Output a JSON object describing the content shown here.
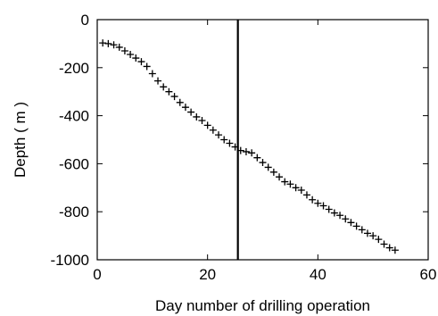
{
  "chart_data": {
    "type": "scatter",
    "title": "",
    "xlabel": "Day number of drilling operation",
    "ylabel": "Depth ( m )",
    "xlim": [
      0,
      60
    ],
    "ylim": [
      -1000,
      0
    ],
    "xticks": [
      0,
      20,
      40,
      60
    ],
    "yticks": [
      0,
      -200,
      -400,
      -600,
      -800,
      -1000
    ],
    "xtick_labels": [
      "0",
      "20",
      "40",
      "60"
    ],
    "ytick_labels": [
      "0",
      "-200",
      "-400",
      "-600",
      "-800",
      "-1000"
    ],
    "grid": false,
    "legend": "none",
    "marker": "+",
    "marker_color": "#000000",
    "vertical_line_x": 25.5,
    "series": [
      {
        "x": [
          1,
          2,
          3,
          4,
          5,
          6,
          7,
          8,
          9,
          10,
          11,
          12,
          13,
          14,
          15,
          16,
          17,
          18,
          19,
          20,
          21,
          22,
          23,
          24,
          25,
          26,
          27,
          28,
          29,
          30,
          31,
          32,
          33,
          34,
          35,
          36,
          37,
          38,
          39,
          40,
          41,
          42,
          43,
          44,
          45,
          46,
          47,
          48,
          49,
          50,
          51,
          52,
          53,
          54
        ],
        "y": [
          -97,
          -100,
          -105,
          -115,
          -130,
          -145,
          -160,
          -175,
          -195,
          -225,
          -255,
          -280,
          -300,
          -320,
          -345,
          -365,
          -385,
          -405,
          -420,
          -440,
          -460,
          -480,
          -500,
          -515,
          -530,
          -545,
          -550,
          -555,
          -575,
          -595,
          -615,
          -635,
          -655,
          -675,
          -685,
          -700,
          -710,
          -730,
          -750,
          -765,
          -775,
          -790,
          -805,
          -815,
          -830,
          -845,
          -860,
          -875,
          -890,
          -900,
          -915,
          -935,
          -950,
          -960
        ]
      }
    ]
  }
}
